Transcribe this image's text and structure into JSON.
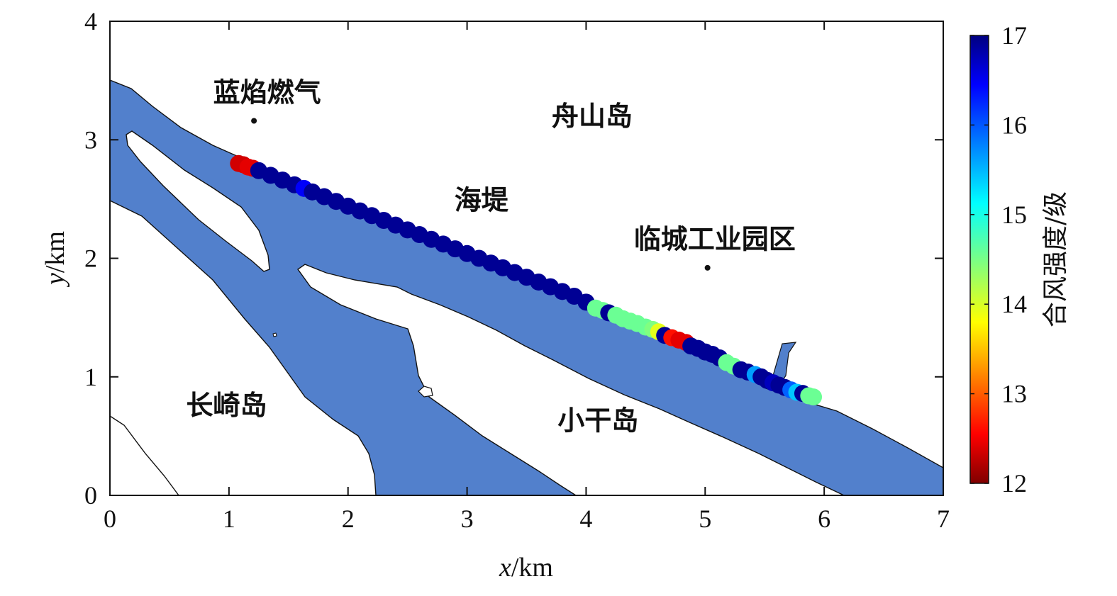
{
  "chart_data": {
    "type": "scatter",
    "xlabel": {
      "var": "x",
      "unit": "/km"
    },
    "ylabel": {
      "var": "y",
      "unit": "/km"
    },
    "xlim": [
      0,
      7
    ],
    "ylim": [
      0,
      4
    ],
    "xticks": [
      0,
      1,
      2,
      3,
      4,
      5,
      6,
      7
    ],
    "yticks": [
      0,
      1,
      2,
      3,
      4
    ],
    "grid": false,
    "colorbar": {
      "label": "合风强度/级",
      "range": [
        12,
        17
      ],
      "ticks": [
        12,
        13,
        14,
        15,
        16,
        17
      ],
      "colormap": "jet",
      "position": "right"
    },
    "water_color": "#5280cc",
    "land_color": "#ffffff",
    "annotations": [
      {
        "text": "蓝焰燃气",
        "x": 1.32,
        "y": 3.4,
        "point": [
          1.21,
          3.16
        ]
      },
      {
        "text": "舟山岛",
        "x": 4.05,
        "y": 3.2
      },
      {
        "text": "海堤",
        "x": 3.12,
        "y": 2.49
      },
      {
        "text": "临城工业园区",
        "x": 5.08,
        "y": 2.16,
        "point": [
          5.02,
          1.92
        ]
      },
      {
        "text": "长崎岛",
        "x": 0.98,
        "y": 0.76
      },
      {
        "text": "小干岛",
        "x": 4.1,
        "y": 0.63
      }
    ],
    "series": [
      {
        "points": [
          [
            1.08,
            2.8,
            12.4
          ],
          [
            1.12,
            2.79,
            12.4
          ],
          [
            1.16,
            2.77,
            12.5
          ],
          [
            1.2,
            2.76,
            12.5
          ],
          [
            1.25,
            2.74,
            16.9
          ],
          [
            1.35,
            2.7,
            16.9
          ],
          [
            1.45,
            2.66,
            16.9
          ],
          [
            1.55,
            2.62,
            16.9
          ],
          [
            1.63,
            2.59,
            16.4
          ],
          [
            1.7,
            2.56,
            16.9
          ],
          [
            1.8,
            2.52,
            16.9
          ],
          [
            1.9,
            2.48,
            16.9
          ],
          [
            2.0,
            2.44,
            16.9
          ],
          [
            2.1,
            2.4,
            16.9
          ],
          [
            2.2,
            2.36,
            16.9
          ],
          [
            2.3,
            2.32,
            16.9
          ],
          [
            2.4,
            2.28,
            16.9
          ],
          [
            2.5,
            2.24,
            16.9
          ],
          [
            2.6,
            2.2,
            16.9
          ],
          [
            2.7,
            2.16,
            16.9
          ],
          [
            2.8,
            2.12,
            16.9
          ],
          [
            2.9,
            2.08,
            16.9
          ],
          [
            3.0,
            2.04,
            16.9
          ],
          [
            3.1,
            2.0,
            16.9
          ],
          [
            3.2,
            1.96,
            16.9
          ],
          [
            3.3,
            1.92,
            16.9
          ],
          [
            3.4,
            1.88,
            16.9
          ],
          [
            3.5,
            1.84,
            16.9
          ],
          [
            3.6,
            1.8,
            16.9
          ],
          [
            3.7,
            1.76,
            16.9
          ],
          [
            3.8,
            1.72,
            16.9
          ],
          [
            3.9,
            1.68,
            16.9
          ],
          [
            4.0,
            1.63,
            16.9
          ],
          [
            4.08,
            1.58,
            14.6
          ],
          [
            4.14,
            1.56,
            14.6
          ],
          [
            4.19,
            1.54,
            16.9
          ],
          [
            4.25,
            1.52,
            14.6
          ],
          [
            4.31,
            1.49,
            14.6
          ],
          [
            4.37,
            1.47,
            14.6
          ],
          [
            4.43,
            1.45,
            14.6
          ],
          [
            4.5,
            1.42,
            14.6
          ],
          [
            4.56,
            1.4,
            14.5
          ],
          [
            4.61,
            1.38,
            14.0
          ],
          [
            4.66,
            1.35,
            16.9
          ],
          [
            4.72,
            1.33,
            12.7
          ],
          [
            4.78,
            1.31,
            12.5
          ],
          [
            4.84,
            1.29,
            12.5
          ],
          [
            4.88,
            1.26,
            16.9
          ],
          [
            4.94,
            1.24,
            16.9
          ],
          [
            5.0,
            1.21,
            16.9
          ],
          [
            5.06,
            1.19,
            16.9
          ],
          [
            5.12,
            1.16,
            16.9
          ],
          [
            5.18,
            1.12,
            14.6
          ],
          [
            5.24,
            1.09,
            14.6
          ],
          [
            5.3,
            1.06,
            16.9
          ],
          [
            5.36,
            1.04,
            16.9
          ],
          [
            5.42,
            1.02,
            15.6
          ],
          [
            5.47,
            1.0,
            16.9
          ],
          [
            5.52,
            0.97,
            16.9
          ],
          [
            5.57,
            0.95,
            16.7
          ],
          [
            5.62,
            0.93,
            16.9
          ],
          [
            5.67,
            0.91,
            16.9
          ],
          [
            5.72,
            0.89,
            15.9
          ],
          [
            5.77,
            0.87,
            15.4
          ],
          [
            5.82,
            0.86,
            16.9
          ],
          [
            5.87,
            0.84,
            14.6
          ],
          [
            5.91,
            0.83,
            14.6
          ]
        ]
      }
    ]
  }
}
